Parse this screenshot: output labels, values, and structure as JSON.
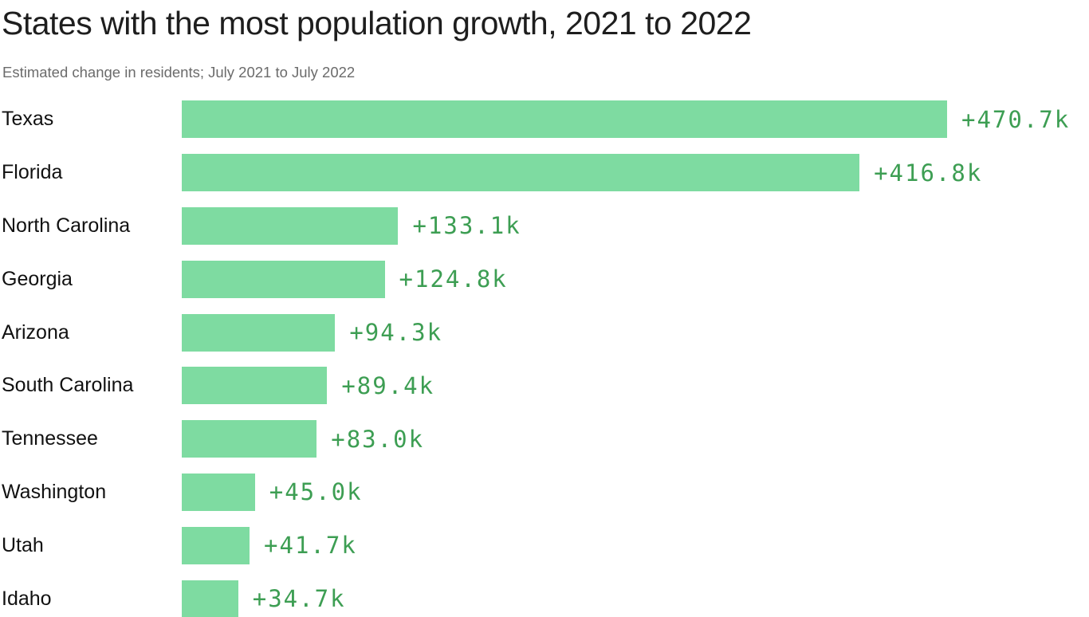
{
  "header": {
    "title": "States with the most population growth, 2021 to 2022",
    "subtitle": "Estimated change in residents; July 2021 to July 2022"
  },
  "colors": {
    "bar": "#7edba1",
    "value_text": "#3d9e53",
    "title_text": "#1e1e1e",
    "subtitle_text": "#6b6b6b",
    "label_text": "#111111",
    "background": "#ffffff"
  },
  "chart_data": {
    "type": "bar",
    "orientation": "horizontal",
    "title": "States with the most population growth, 2021 to 2022",
    "subtitle": "Estimated change in residents; July 2021 to July 2022",
    "categories": [
      "Texas",
      "Florida",
      "North Carolina",
      "Georgia",
      "Arizona",
      "South Carolina",
      "Tennessee",
      "Washington",
      "Utah",
      "Idaho"
    ],
    "values": [
      470.7,
      416.8,
      133.1,
      124.8,
      94.3,
      89.4,
      83.0,
      45.0,
      41.7,
      34.7
    ],
    "value_labels": [
      "+470.7k",
      "+416.8k",
      "+133.1k",
      "+124.8k",
      "+94.3k",
      "+89.4k",
      "+83.0k",
      "+45.0k",
      "+41.7k",
      "+34.7k"
    ],
    "xlim": [
      0,
      470.7
    ],
    "grid": false,
    "legend": false,
    "value_label_position": "right-of-bar"
  }
}
